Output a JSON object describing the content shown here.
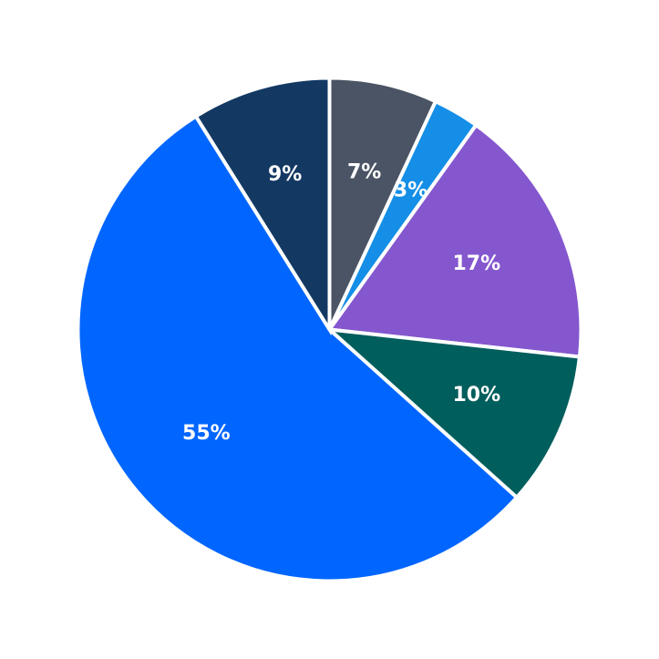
{
  "chart_data": {
    "type": "pie",
    "title": "",
    "start_angle_deg": 90,
    "direction": "clockwise",
    "legend": "none",
    "slices": [
      {
        "label": "7%",
        "value": 7,
        "color": "#4a5464"
      },
      {
        "label": "3%",
        "value": 3,
        "color": "#148ee6"
      },
      {
        "label": "17%",
        "value": 17,
        "color": "#8457ce"
      },
      {
        "label": "10%",
        "value": 10,
        "color": "#005e5c"
      },
      {
        "label": "55%",
        "value": 55,
        "color": "#0066ff"
      },
      {
        "label": "9%",
        "value": 9,
        "color": "#133963"
      }
    ]
  }
}
